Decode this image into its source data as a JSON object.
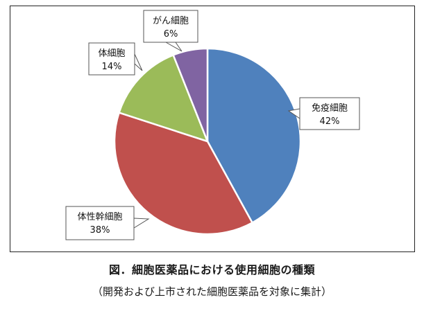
{
  "chart_data": {
    "type": "pie",
    "categories": [
      "免疫細胞",
      "体性幹細胞",
      "体細胞",
      "がん細胞"
    ],
    "values": [
      42,
      38,
      14,
      6
    ],
    "value_labels": [
      "42%",
      "38%",
      "14%",
      "6%"
    ],
    "colors": [
      "#4f81bd",
      "#c0504d",
      "#9bbb59",
      "#8064a2"
    ],
    "start": "12 o'clock, clockwise",
    "legend": "none (callout labels)"
  },
  "caption": {
    "title": "図．細胞医薬品における使用細胞の種類",
    "subtitle": "（開発および上市された細胞医薬品を対象に集計）"
  }
}
